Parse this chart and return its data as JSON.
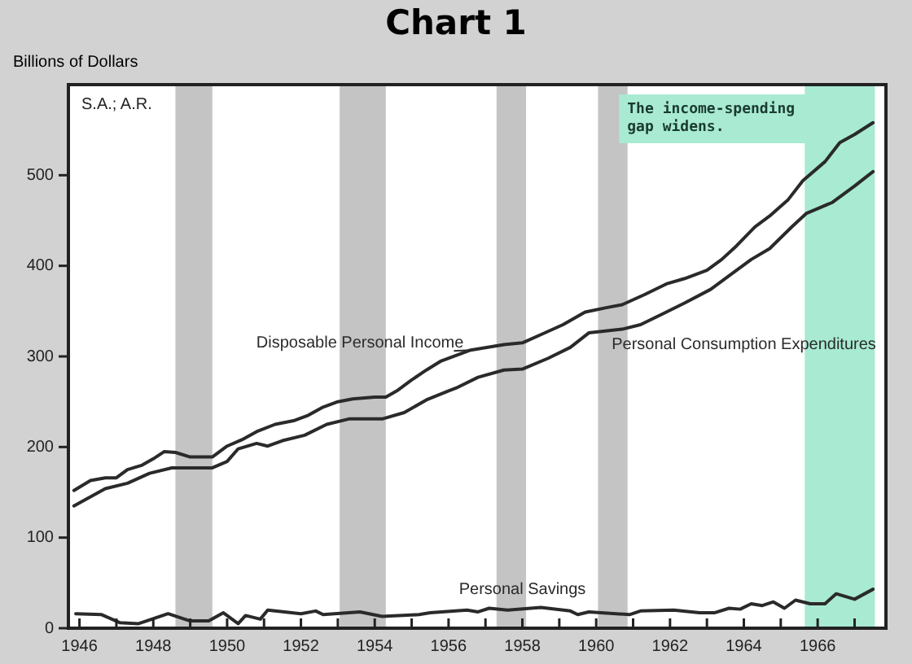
{
  "chart_data": {
    "type": "line",
    "title": "Chart 1",
    "ylabel": "Billions of Dollars",
    "annotations": [
      "S.A.; A.R."
    ],
    "xlim": [
      1945.7,
      1967.85
    ],
    "xticks": [
      {
        "value": 1946,
        "label": "1946"
      },
      {
        "value": 1947,
        "label": null
      },
      {
        "value": 1948,
        "label": "1948"
      },
      {
        "value": 1949,
        "label": null
      },
      {
        "value": 1950,
        "label": "1950"
      },
      {
        "value": 1951,
        "label": null
      },
      {
        "value": 1952,
        "label": "1952"
      },
      {
        "value": 1953,
        "label": null
      },
      {
        "value": 1954,
        "label": "1954"
      },
      {
        "value": 1955,
        "label": null
      },
      {
        "value": 1956,
        "label": "1956"
      },
      {
        "value": 1957,
        "label": null
      },
      {
        "value": 1958,
        "label": "1958"
      },
      {
        "value": 1959,
        "label": null
      },
      {
        "value": 1960,
        "label": "1960"
      },
      {
        "value": 1961,
        "label": null
      },
      {
        "value": 1962,
        "label": "1962"
      },
      {
        "value": 1963,
        "label": null
      },
      {
        "value": 1964,
        "label": "1964"
      },
      {
        "value": 1965,
        "label": null
      },
      {
        "value": 1966,
        "label": "1966"
      },
      {
        "value": 1967,
        "label": null
      }
    ],
    "ylim": [
      0,
      600
    ],
    "yticks": [
      0,
      100,
      200,
      300,
      400,
      500
    ],
    "grid": false,
    "legend": false,
    "marker": "none",
    "line_style": "solid",
    "series": [
      {
        "name": "Disposable Personal Income",
        "color": "#2a2a2a",
        "x": [
          1945.85,
          1946.3,
          1946.7,
          1947.0,
          1947.3,
          1947.7,
          1948.0,
          1948.3,
          1948.6,
          1949.0,
          1949.6,
          1950.0,
          1950.4,
          1950.8,
          1951.3,
          1951.8,
          1952.2,
          1952.6,
          1953.0,
          1953.4,
          1954.0,
          1954.3,
          1954.6,
          1955.0,
          1955.4,
          1955.8,
          1956.6,
          1957.5,
          1958.0,
          1958.5,
          1959.1,
          1959.7,
          1960.3,
          1960.7,
          1961.3,
          1961.9,
          1962.4,
          1963.0,
          1963.4,
          1963.8,
          1964.3,
          1964.7,
          1965.2,
          1965.6,
          1966.2,
          1966.6,
          1967.0,
          1967.5
        ],
        "values": [
          152,
          163,
          166,
          166,
          175,
          180,
          187,
          195,
          194,
          189,
          189,
          201,
          208,
          217,
          225,
          229,
          235,
          244,
          250,
          253,
          255,
          255,
          262,
          274,
          285,
          295,
          307,
          313,
          315,
          324,
          335,
          349,
          354,
          357,
          368,
          380,
          386,
          395,
          407,
          422,
          443,
          455,
          473,
          494,
          515,
          536,
          545,
          558
        ]
      },
      {
        "name": "Personal Consumption Expenditures",
        "color": "#2a2a2a",
        "x": [
          1945.85,
          1946.3,
          1946.7,
          1947.3,
          1947.9,
          1948.5,
          1949.6,
          1950.0,
          1950.3,
          1950.8,
          1951.1,
          1951.5,
          1952.1,
          1952.7,
          1953.3,
          1954.2,
          1954.8,
          1955.4,
          1956.0,
          1956.2,
          1956.8,
          1957.5,
          1958.0,
          1958.7,
          1959.3,
          1959.8,
          1960.7,
          1961.2,
          1961.8,
          1962.4,
          1963.1,
          1963.6,
          1964.2,
          1964.7,
          1965.3,
          1965.7,
          1966.4,
          1967.0,
          1967.5
        ],
        "values": [
          135,
          145,
          154,
          160,
          171,
          177,
          177,
          184,
          198,
          204,
          201,
          207,
          213,
          225,
          231,
          231,
          238,
          252,
          262,
          265,
          277,
          285,
          286,
          298,
          310,
          326,
          330,
          335,
          347,
          359,
          374,
          389,
          407,
          419,
          443,
          458,
          470,
          488,
          504
        ]
      },
      {
        "name": "Personal Savings",
        "color": "#2a2a2a",
        "x": [
          1945.9,
          1946.6,
          1947.1,
          1947.6,
          1948.4,
          1949.0,
          1949.5,
          1949.9,
          1950.3,
          1950.5,
          1950.9,
          1951.1,
          1952.0,
          1952.4,
          1952.6,
          1953.6,
          1954.2,
          1955.2,
          1955.5,
          1956.5,
          1956.8,
          1957.1,
          1957.6,
          1958.5,
          1959.3,
          1959.5,
          1959.8,
          1960.9,
          1961.2,
          1962.1,
          1962.8,
          1963.2,
          1963.6,
          1963.9,
          1964.2,
          1964.5,
          1964.8,
          1965.1,
          1965.4,
          1965.8,
          1966.2,
          1966.5,
          1967.0,
          1967.5
        ],
        "values": [
          16,
          15,
          6,
          5,
          16,
          8,
          8,
          17,
          5,
          14,
          10,
          20,
          16,
          19,
          15,
          18,
          13,
          15,
          17,
          20,
          18,
          22,
          20,
          23,
          19,
          15,
          18,
          15,
          19,
          20,
          17,
          17,
          22,
          21,
          27,
          25,
          29,
          22,
          31,
          27,
          27,
          38,
          32,
          43
        ]
      }
    ],
    "bands": [
      {
        "axis": "x",
        "from": 1948.6,
        "to": 1949.6,
        "color": "#c4c4c4"
      },
      {
        "axis": "x",
        "from": 1953.05,
        "to": 1954.3,
        "color": "#c4c4c4"
      },
      {
        "axis": "x",
        "from": 1957.3,
        "to": 1958.1,
        "color": "#c4c4c4"
      },
      {
        "axis": "x",
        "from": 1960.05,
        "to": 1960.85,
        "color": "#c4c4c4"
      },
      {
        "axis": "x",
        "from": 1965.65,
        "to": 1967.55,
        "color": "#a8ead2",
        "label": "The income-spending gap widens."
      }
    ]
  }
}
